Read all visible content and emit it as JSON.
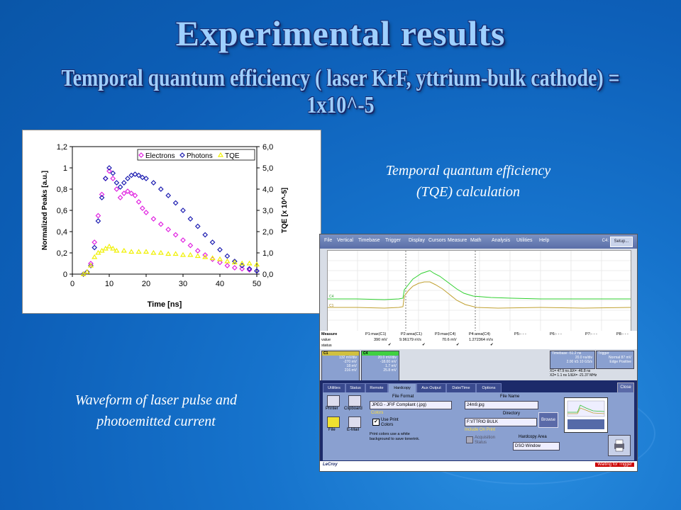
{
  "slide": {
    "title": "Experimental results",
    "subtitle": "Temporal quantum efficiency ( laser KrF, yttrium-bulk cathode) = 1x10^-5",
    "caption_right_1": "Temporal quantum efficiency",
    "caption_right_2": "(TQE) calculation",
    "caption_left_1": "Waveform of laser pulse and",
    "caption_left_2": "photoemitted current"
  },
  "chart_data": {
    "type": "scatter",
    "xlabel": "Time [ns]",
    "ylabel": "Normalized Peaks [a.u.]",
    "y2label": "TQE [x 10^-5]",
    "xlim": [
      0,
      50
    ],
    "ylim": [
      0,
      1.2
    ],
    "y2lim": [
      0,
      6.0
    ],
    "x_ticks": [
      "0",
      "10",
      "20",
      "30",
      "40",
      "50"
    ],
    "y_ticks": [
      "0",
      "0,2",
      "0,4",
      "0,6",
      "0,8",
      "1",
      "1,2"
    ],
    "y2_ticks": [
      "0,0",
      "1,0",
      "2,0",
      "3,0",
      "4,0",
      "5,0",
      "6,0"
    ],
    "legend_position": "top-right",
    "series": [
      {
        "name": "Electrons",
        "color": "#e020e0",
        "marker": "diamond",
        "x": [
          3,
          4,
          5,
          6,
          7,
          8,
          9,
          10,
          11,
          12,
          13,
          14,
          15,
          16,
          17,
          18,
          19,
          20,
          22,
          24,
          26,
          28,
          30,
          32,
          34,
          36,
          38,
          40,
          42,
          44,
          46,
          48,
          50
        ],
        "y": [
          0,
          0.02,
          0.1,
          0.3,
          0.55,
          0.75,
          0.9,
          0.97,
          0.9,
          0.8,
          0.72,
          0.76,
          0.78,
          0.76,
          0.74,
          0.68,
          0.62,
          0.58,
          0.52,
          0.47,
          0.42,
          0.37,
          0.32,
          0.27,
          0.22,
          0.18,
          0.14,
          0.11,
          0.08,
          0.06,
          0.05,
          0.04,
          0.03
        ]
      },
      {
        "name": "Photons",
        "color": "#1a1ab0",
        "marker": "diamond",
        "x": [
          3,
          4,
          5,
          6,
          7,
          8,
          9,
          10,
          11,
          12,
          13,
          14,
          15,
          16,
          17,
          18,
          19,
          20,
          22,
          24,
          26,
          28,
          30,
          32,
          34,
          36,
          38,
          40,
          42,
          44,
          46,
          48,
          50
        ],
        "y": [
          0,
          0.02,
          0.08,
          0.25,
          0.5,
          0.72,
          0.9,
          1.0,
          0.95,
          0.86,
          0.82,
          0.86,
          0.9,
          0.93,
          0.94,
          0.93,
          0.91,
          0.9,
          0.86,
          0.8,
          0.74,
          0.67,
          0.6,
          0.52,
          0.45,
          0.37,
          0.3,
          0.23,
          0.17,
          0.12,
          0.08,
          0.05,
          0.03
        ]
      },
      {
        "name": "TQE",
        "color": "#f0f000",
        "marker": "triangle",
        "x": [
          3,
          4,
          5,
          6,
          7,
          8,
          9,
          10,
          11,
          12,
          14,
          16,
          18,
          20,
          22,
          24,
          26,
          28,
          30,
          32,
          34,
          36,
          38,
          40,
          42,
          44,
          46,
          48,
          50
        ],
        "y": [
          0,
          0.1,
          0.4,
          0.8,
          1.0,
          1.1,
          1.2,
          1.3,
          1.2,
          1.1,
          1.1,
          1.05,
          1.05,
          1.05,
          1.0,
          1.0,
          0.95,
          0.95,
          0.9,
          0.9,
          0.85,
          0.8,
          0.75,
          0.7,
          0.6,
          0.55,
          0.5,
          0.5,
          0.45
        ]
      }
    ]
  },
  "scope": {
    "menu": [
      "File",
      "Vertical",
      "Timebase",
      "Trigger",
      "Display",
      "Cursors",
      "Measure",
      "Math",
      "Analysis",
      "Utilities",
      "Help"
    ],
    "c4_label": "C4:",
    "setup": "Setup...",
    "measure_header": [
      "Measure",
      "P1:max(C1)",
      "P2:area(C1)",
      "P3:max(C4)",
      "P4:area(C4)",
      "P5:- - -",
      "P6:- - -",
      "P7:- - -",
      "P8:- - -"
    ],
    "value_row": [
      "value",
      "390 mV",
      "9.96179 nVs",
      "70.6 mV",
      "1.272364 nVs"
    ],
    "status_label": "status",
    "c1_label": "C1",
    "c1_vals": [
      "132 mV/div",
      "-270 mV",
      "18 mV",
      "216 mV"
    ],
    "c4_chlabel": "C4",
    "c4_vals": [
      "20.0 mV/div",
      "-18.00 mV",
      "1.7 mV",
      "25.8 mV"
    ],
    "timebase_vals": [
      "Timebase -51.2 ns",
      "20.0 ns/div",
      "2.00 kS  10 GS/s"
    ],
    "trigger_vals": [
      "Trigger",
      "Normal 87 mV",
      "Edge Positive"
    ],
    "cursor_vals": [
      "X1= 47.9 ns  ΔX= -46.8 ns",
      "X2= 1.1 ns 1/ΔX= -21.37 MHz"
    ],
    "tabs": [
      "Utilities",
      "Status",
      "Remote",
      "Hardcopy",
      "Aux Output",
      "Date/Time",
      "Options"
    ],
    "close": "Close",
    "printer": "Printer",
    "clipboard": "Clipboard",
    "file": "File",
    "email": "E-Mail",
    "file_format_label": "File Format",
    "file_format_value": "JPEG - JFIF Compliant (.jpg)",
    "colors_label": "Colors",
    "use_print_colors": "Use Print Colors",
    "print_note": "Print colors use a white background to save tonerink.",
    "file_name_label": "File Name",
    "file_name_value": "24m9.jpg",
    "directory_label": "Directory",
    "directory_value": "F:\\ITTRIO BULK",
    "browse": "Browse",
    "include_on_print": "Include On Print",
    "acq_status": "Acquisition Status",
    "hardcopy_area_label": "Hardcopy Area",
    "hardcopy_area_value": "DSO Window",
    "brand": "LeCroy",
    "trigger_status": "Waiting for Trigger"
  }
}
